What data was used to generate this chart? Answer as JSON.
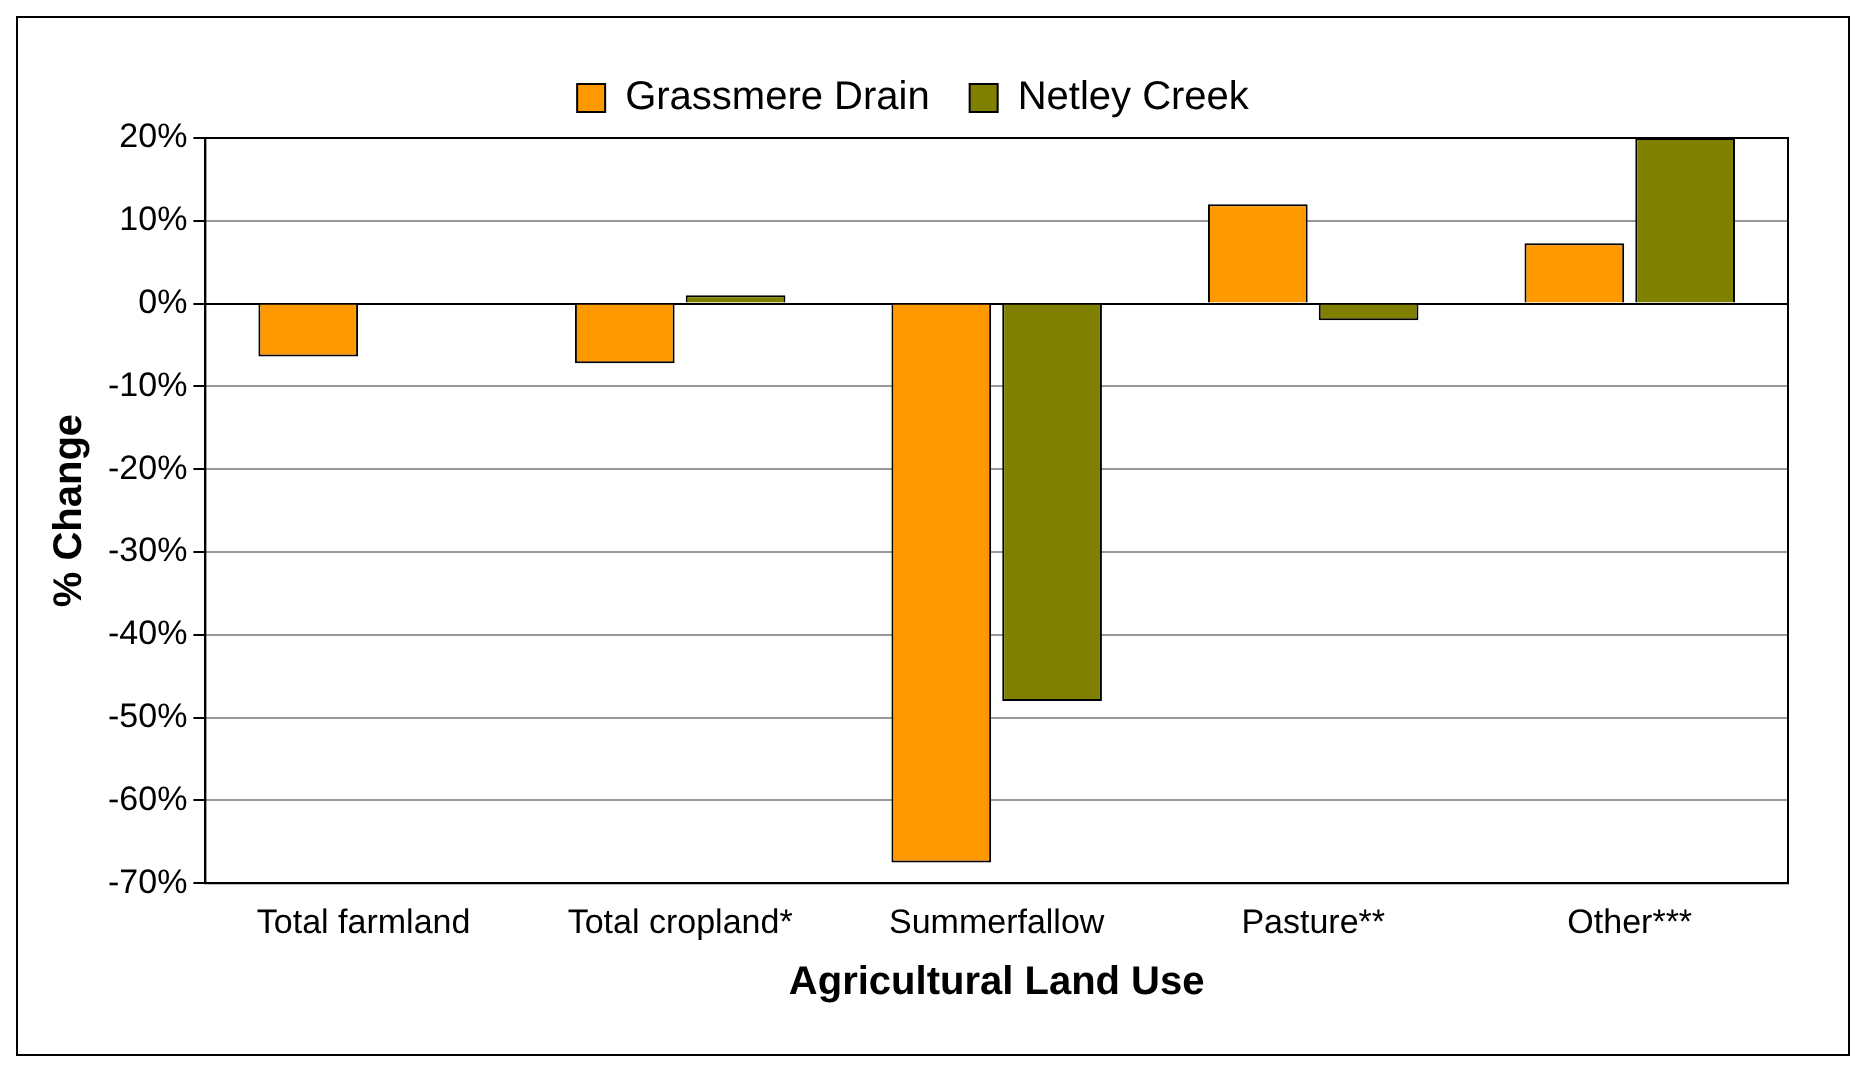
{
  "chart_data": {
    "type": "bar",
    "xlabel": "Agricultural Land Use",
    "ylabel": "% Change",
    "categories": [
      "Total farmland",
      "Total cropland*",
      "Summerfallow",
      "Pasture**",
      "Other***"
    ],
    "series": [
      {
        "name": "Grassmere Drain",
        "color": "#ff9900",
        "values": [
          -6.4,
          -7.2,
          -67.5,
          12,
          7.3
        ]
      },
      {
        "name": "Netley Creek",
        "color": "#808000",
        "values": [
          null,
          1,
          -48,
          -2,
          20
        ]
      }
    ],
    "ylim": [
      -70,
      20
    ],
    "yticks": [
      {
        "value": -70,
        "label": "-70%"
      },
      {
        "value": -60,
        "label": "-60%"
      },
      {
        "value": -50,
        "label": "-50%"
      },
      {
        "value": -40,
        "label": "-40%"
      },
      {
        "value": -30,
        "label": "-30%"
      },
      {
        "value": -20,
        "label": "-20%"
      },
      {
        "value": -10,
        "label": "-10%"
      },
      {
        "value": 0,
        "label": "0%"
      },
      {
        "value": 10,
        "label": "10%"
      },
      {
        "value": 20,
        "label": "20%"
      }
    ],
    "grid": "y",
    "legend": "top"
  }
}
